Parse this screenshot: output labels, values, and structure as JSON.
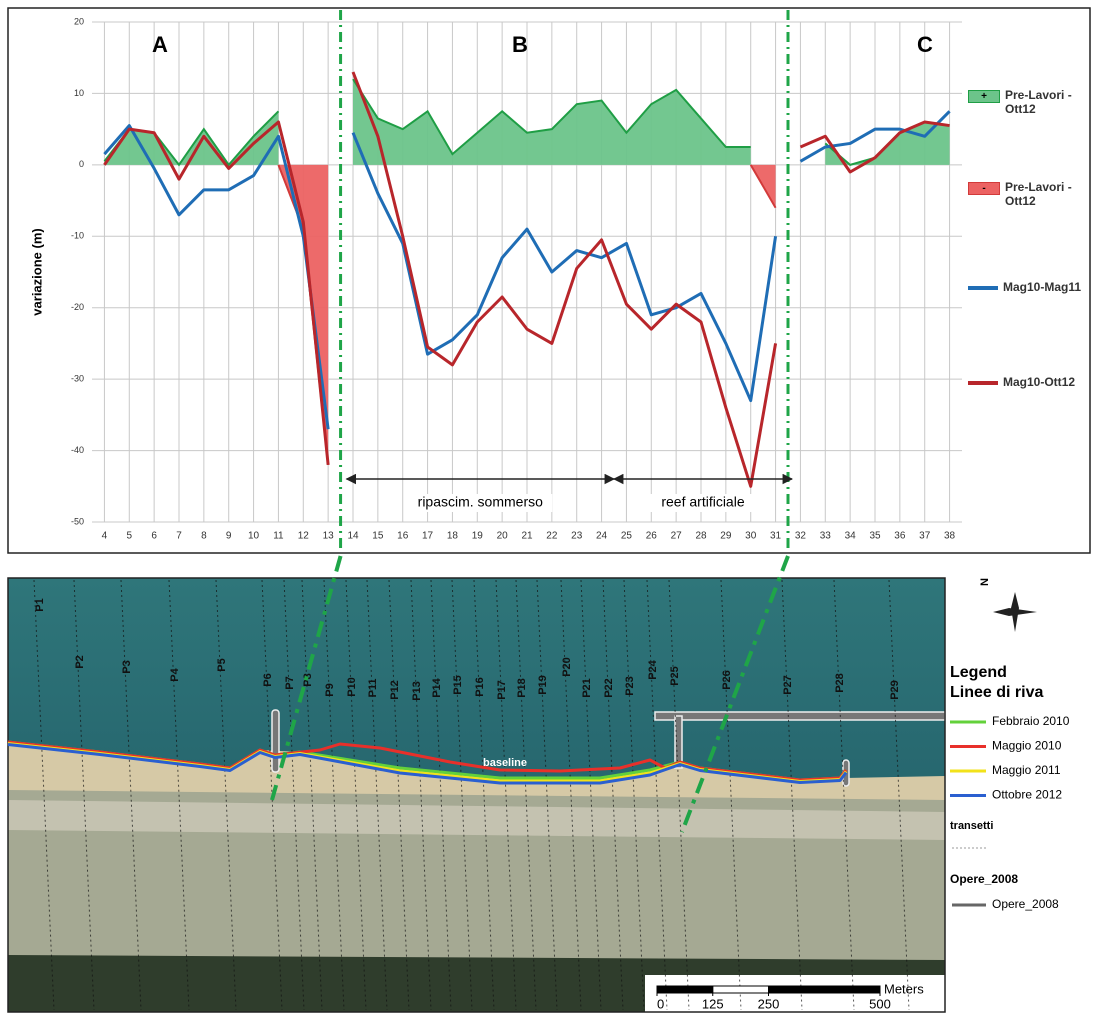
{
  "chart_data": {
    "type": "line",
    "ylabel": "variazione (m)",
    "ylim": [
      -50,
      20
    ],
    "yticks": [
      -50,
      -40,
      -30,
      -20,
      -10,
      0,
      10,
      20
    ],
    "grid": true,
    "sections": [
      {
        "label": "A",
        "categories": [
          4,
          5,
          6,
          7,
          8,
          9,
          10,
          11,
          12,
          13
        ]
      },
      {
        "label": "B",
        "categories": [
          14,
          15,
          16,
          17,
          18,
          19,
          20,
          21,
          22,
          23,
          24,
          25,
          26,
          27,
          28,
          29,
          30,
          31
        ]
      },
      {
        "label": "C",
        "categories": [
          32,
          33,
          34,
          35,
          36,
          37,
          38
        ]
      }
    ],
    "annotations": [
      {
        "text": "ripascim. sommerso"
      },
      {
        "text": "reef artificiale"
      }
    ],
    "series": [
      {
        "name": "Pre-Lavori - Ott12",
        "sign": "+",
        "type": "area",
        "color": "#6cc48a",
        "line_color": "#1f9e45",
        "values": [
          0.5,
          5,
          4.5,
          0,
          5,
          0,
          4,
          7.5,
          null,
          null,
          12,
          6.5,
          5,
          7.5,
          1.5,
          4.5,
          7.5,
          4.5,
          5,
          8.5,
          9,
          4.5,
          8.5,
          10.5,
          6.5,
          2.5,
          2.5,
          null,
          null,
          3,
          0,
          1,
          4.5,
          6,
          5.5
        ]
      },
      {
        "name": "Pre-Lavori - Ott12",
        "sign": "-",
        "type": "area",
        "color": "#ec6262",
        "line_color": "#d23a3a",
        "values": [
          null,
          null,
          null,
          null,
          null,
          null,
          null,
          0,
          -9,
          -42,
          null,
          null,
          null,
          null,
          null,
          null,
          null,
          null,
          null,
          null,
          null,
          null,
          null,
          null,
          null,
          null,
          0,
          -6,
          null,
          null,
          null,
          null,
          null,
          null,
          null
        ]
      },
      {
        "name": "Mag10-Mag11",
        "type": "line",
        "color": "#1f6db5",
        "values": [
          1.5,
          5.5,
          -0.5,
          -7,
          -3.5,
          -3.5,
          -1.5,
          4,
          -10,
          -37,
          4.5,
          -4,
          -11,
          -26.5,
          -24.5,
          -21,
          -13,
          -9,
          -15,
          -12,
          -13,
          -11,
          -21,
          -20,
          -18,
          -25,
          -33,
          -10,
          0.5,
          2.5,
          3,
          5,
          5,
          4,
          7.5
        ]
      },
      {
        "name": "Mag10-Ott12",
        "type": "line",
        "color": "#b8262b",
        "values": [
          0,
          5,
          4.5,
          -2,
          4,
          -0.5,
          3,
          6,
          -8,
          -42,
          13,
          4,
          -10,
          -25.5,
          -28,
          -22,
          -18.5,
          -23,
          -25,
          -14.5,
          -10.5,
          -19.5,
          -23,
          -19.5,
          -22,
          -34,
          -45,
          -25,
          2.5,
          4,
          -1,
          1,
          4.5,
          6,
          5.5
        ]
      }
    ]
  },
  "map": {
    "transects": [
      "P1",
      "P2",
      "P3",
      "P4",
      "P5",
      "P6",
      "P7",
      "P8",
      "P9",
      "P10",
      "P11",
      "P12",
      "P13",
      "P14",
      "P15",
      "P16",
      "P17",
      "P18",
      "P19",
      "P20",
      "P21",
      "P22",
      "P23",
      "P24",
      "P25",
      "P26",
      "P27",
      "P28",
      "P29"
    ],
    "baseline": "baseline",
    "north": "N",
    "legend": {
      "title": "Legend",
      "subtitle": "Linee di riva",
      "shorelines": [
        {
          "name": "Febbraio 2010",
          "color": "#63d13b"
        },
        {
          "name": "Maggio 2010",
          "color": "#e8302a"
        },
        {
          "name": "Maggio 2011",
          "color": "#f2e21a"
        },
        {
          "name": "Ottobre 2012",
          "color": "#2a5fd0"
        }
      ],
      "transects": "transetti",
      "works_title": "Opere_2008",
      "works": "Opere_2008"
    },
    "scale": {
      "unit": "Meters",
      "ticks": [
        0,
        125,
        250,
        500
      ]
    }
  }
}
